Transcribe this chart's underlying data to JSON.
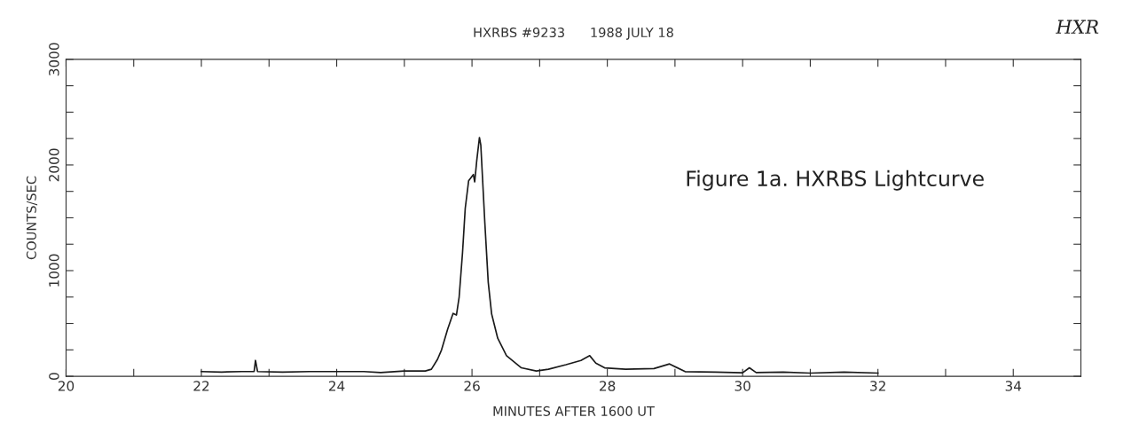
{
  "chart_data": {
    "type": "line",
    "title": "HXRBS #9233      1988 JULY 18",
    "xlabel": "MINUTES AFTER 1600 UT",
    "ylabel": "COUNTS/SEC",
    "annotations": [
      "Figure 1a. HXRBS Lightcurve",
      "HXR"
    ],
    "x": [
      22.0,
      22.3,
      22.6,
      22.78,
      22.8,
      22.83,
      23.2,
      23.6,
      24.0,
      24.4,
      24.65,
      25.0,
      25.31,
      25.4,
      25.49,
      25.55,
      25.64,
      25.72,
      25.77,
      25.81,
      25.86,
      25.9,
      25.95,
      26.02,
      26.04,
      26.07,
      26.11,
      26.13,
      26.19,
      26.24,
      26.29,
      26.38,
      26.51,
      26.73,
      26.95,
      27.13,
      27.39,
      27.61,
      27.74,
      27.83,
      27.96,
      28.27,
      28.69,
      28.92,
      29.15,
      29.6,
      30.0,
      30.1,
      30.2,
      30.6,
      31.0,
      31.5,
      32.0
    ],
    "series": [
      {
        "color": "#1a1a1a",
        "values": [
          45,
          40,
          45,
          45,
          150,
          45,
          40,
          45,
          45,
          45,
          35,
          50,
          50,
          67,
          160,
          250,
          445,
          595,
          580,
          750,
          1170,
          1590,
          1850,
          1910,
          1840,
          2040,
          2260,
          2190,
          1450,
          890,
          590,
          360,
          195,
          80,
          50,
          67,
          110,
          150,
          195,
          125,
          80,
          67,
          73,
          117,
          44,
          40,
          33,
          80,
          35,
          40,
          30,
          40,
          30
        ]
      }
    ],
    "xlim": [
      20,
      35
    ],
    "ylim": [
      0,
      3000
    ],
    "xticks": [
      20,
      {
        "value": 21,
        "label": null
      },
      22,
      {
        "value": 23,
        "label": null
      },
      24,
      {
        "value": 25,
        "label": null
      },
      26,
      {
        "value": 27,
        "label": null
      },
      28,
      {
        "value": 29,
        "label": null
      },
      30,
      {
        "value": 31,
        "label": null
      },
      32,
      {
        "value": 33,
        "label": null
      },
      34
    ],
    "yticks": [
      0,
      {
        "value": 250,
        "label": null
      },
      {
        "value": 500,
        "label": null
      },
      {
        "value": 750,
        "label": null
      },
      1000,
      {
        "value": 1250,
        "label": null
      },
      {
        "value": 1500,
        "label": null
      },
      {
        "value": 1750,
        "label": null
      },
      2000,
      {
        "value": 2250,
        "label": null
      },
      {
        "value": 2500,
        "label": null
      },
      {
        "value": 2750,
        "label": null
      },
      3000
    ],
    "grid": false,
    "legend": false,
    "marker": "none",
    "line_style": "solid"
  }
}
